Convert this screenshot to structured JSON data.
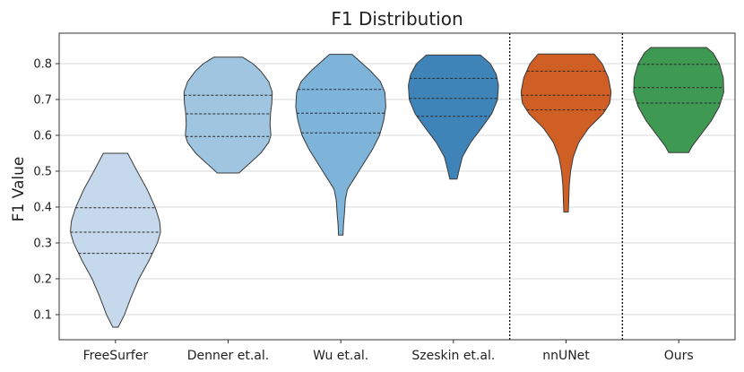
{
  "chart_data": {
    "type": "violin",
    "title": "F1 Distribution",
    "xlabel": "",
    "ylabel": "F1 Value",
    "ylim": [
      0.03,
      0.885
    ],
    "yticks": [
      0.1,
      0.2,
      0.3,
      0.4,
      0.5,
      0.6,
      0.7,
      0.8
    ],
    "grid": "horizontal",
    "separators_after": [
      "Szeskin et.al.",
      "nnUNet"
    ],
    "categories": [
      "FreeSurfer",
      "Denner et.al.",
      "Wu et.al.",
      "Szeskin et.al.",
      "nnUNet",
      "Ours"
    ],
    "series": [
      {
        "category": "FreeSurfer",
        "color": "#c6d9ec",
        "quartiles": [
          0.271,
          0.33,
          0.398
        ],
        "profile": [
          [
            0.065,
            0.06
          ],
          [
            0.1,
            0.2
          ],
          [
            0.15,
            0.35
          ],
          [
            0.2,
            0.52
          ],
          [
            0.25,
            0.74
          ],
          [
            0.3,
            0.93
          ],
          [
            0.33,
            1.0
          ],
          [
            0.36,
            0.98
          ],
          [
            0.4,
            0.88
          ],
          [
            0.45,
            0.7
          ],
          [
            0.5,
            0.48
          ],
          [
            0.55,
            0.27
          ]
        ]
      },
      {
        "category": "Denner et.al.",
        "color": "#9fc5e0",
        "quartiles": [
          0.597,
          0.66,
          0.712
        ],
        "profile": [
          [
            0.495,
            0.24
          ],
          [
            0.52,
            0.46
          ],
          [
            0.55,
            0.72
          ],
          [
            0.58,
            0.9
          ],
          [
            0.6,
            0.95
          ],
          [
            0.63,
            0.93
          ],
          [
            0.66,
            0.94
          ],
          [
            0.69,
            0.97
          ],
          [
            0.72,
            0.98
          ],
          [
            0.75,
            0.9
          ],
          [
            0.78,
            0.72
          ],
          [
            0.8,
            0.55
          ],
          [
            0.818,
            0.32
          ]
        ]
      },
      {
        "category": "Wu et.al.",
        "color": "#7eb3da",
        "quartiles": [
          0.607,
          0.662,
          0.728
        ],
        "profile": [
          [
            0.322,
            0.05
          ],
          [
            0.35,
            0.06
          ],
          [
            0.38,
            0.08
          ],
          [
            0.42,
            0.1
          ],
          [
            0.45,
            0.15
          ],
          [
            0.48,
            0.3
          ],
          [
            0.52,
            0.5
          ],
          [
            0.56,
            0.7
          ],
          [
            0.6,
            0.86
          ],
          [
            0.64,
            0.95
          ],
          [
            0.68,
            1.0
          ],
          [
            0.72,
            0.98
          ],
          [
            0.75,
            0.88
          ],
          [
            0.78,
            0.66
          ],
          [
            0.8,
            0.48
          ],
          [
            0.826,
            0.25
          ]
        ]
      },
      {
        "category": "Szeskin et.al.",
        "color": "#3f84b9",
        "quartiles": [
          0.653,
          0.703,
          0.759
        ],
        "profile": [
          [
            0.478,
            0.08
          ],
          [
            0.5,
            0.12
          ],
          [
            0.54,
            0.2
          ],
          [
            0.58,
            0.38
          ],
          [
            0.62,
            0.62
          ],
          [
            0.66,
            0.85
          ],
          [
            0.7,
            0.98
          ],
          [
            0.74,
            1.0
          ],
          [
            0.77,
            0.95
          ],
          [
            0.8,
            0.82
          ],
          [
            0.824,
            0.6
          ]
        ]
      },
      {
        "category": "nnUNet",
        "color": "#d05f26",
        "quartiles": [
          0.671,
          0.712,
          0.779
        ],
        "profile": [
          [
            0.386,
            0.05
          ],
          [
            0.42,
            0.06
          ],
          [
            0.46,
            0.07
          ],
          [
            0.5,
            0.1
          ],
          [
            0.54,
            0.16
          ],
          [
            0.58,
            0.28
          ],
          [
            0.62,
            0.5
          ],
          [
            0.66,
            0.82
          ],
          [
            0.69,
            0.97
          ],
          [
            0.72,
            1.0
          ],
          [
            0.76,
            0.94
          ],
          [
            0.8,
            0.8
          ],
          [
            0.827,
            0.62
          ]
        ]
      },
      {
        "category": "Ours",
        "color": "#3e9a52",
        "quartiles": [
          0.69,
          0.733,
          0.798
        ],
        "profile": [
          [
            0.552,
            0.22
          ],
          [
            0.57,
            0.3
          ],
          [
            0.6,
            0.48
          ],
          [
            0.64,
            0.72
          ],
          [
            0.68,
            0.9
          ],
          [
            0.72,
            1.0
          ],
          [
            0.76,
            0.99
          ],
          [
            0.8,
            0.9
          ],
          [
            0.83,
            0.76
          ],
          [
            0.845,
            0.62
          ]
        ]
      }
    ]
  }
}
